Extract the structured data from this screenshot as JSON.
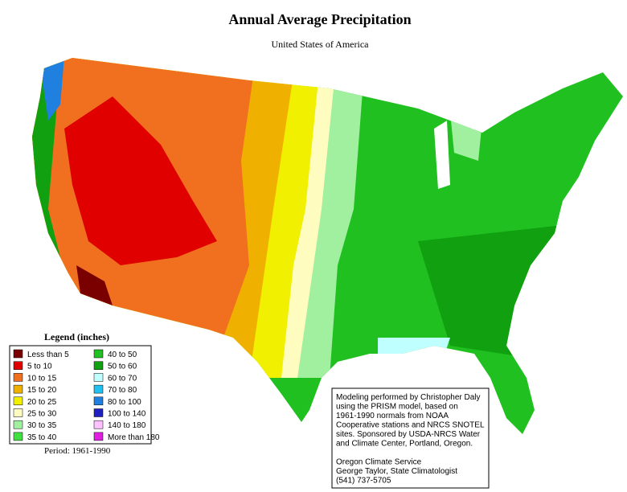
{
  "title": "Annual Average Precipitation",
  "subtitle": "United States of America",
  "legend": {
    "title": "Legend (inches)",
    "items": [
      {
        "label": "Less than 5",
        "color": "#7a0000"
      },
      {
        "label": "5 to 10",
        "color": "#e00000"
      },
      {
        "label": "10 to 15",
        "color": "#f07020"
      },
      {
        "label": "15 to 20",
        "color": "#f0b000"
      },
      {
        "label": "20 to 25",
        "color": "#f0f000"
      },
      {
        "label": "25 to 30",
        "color": "#fffcc0"
      },
      {
        "label": "30 to 35",
        "color": "#a0f0a0"
      },
      {
        "label": "35 to 40",
        "color": "#40e040"
      },
      {
        "label": "40 to 50",
        "color": "#20c020"
      },
      {
        "label": "50 to 60",
        "color": "#10a010"
      },
      {
        "label": "60 to 70",
        "color": "#c0ffff"
      },
      {
        "label": "70 to 80",
        "color": "#20c0f0"
      },
      {
        "label": "80 to 100",
        "color": "#2080e0"
      },
      {
        "label": "100 to 140",
        "color": "#2020c0"
      },
      {
        "label": "140 to 180",
        "color": "#ffc0ff"
      },
      {
        "label": "More than 180",
        "color": "#e020e0"
      }
    ]
  },
  "period": "Period: 1961-1990",
  "note": {
    "credits": [
      "Modeling performed by Christopher Daly",
      "using the PRISM model, based on",
      "1961-1990 normals from NOAA",
      "Cooperative stations and NRCS SNOTEL",
      "sites.  Sponsored by USDA-NRCS Water",
      "and Climate Center, Portland, Oregon."
    ],
    "contact": [
      "Oregon Climate Service",
      "George Taylor, State Climatologist",
      "(541) 737-5705"
    ]
  }
}
